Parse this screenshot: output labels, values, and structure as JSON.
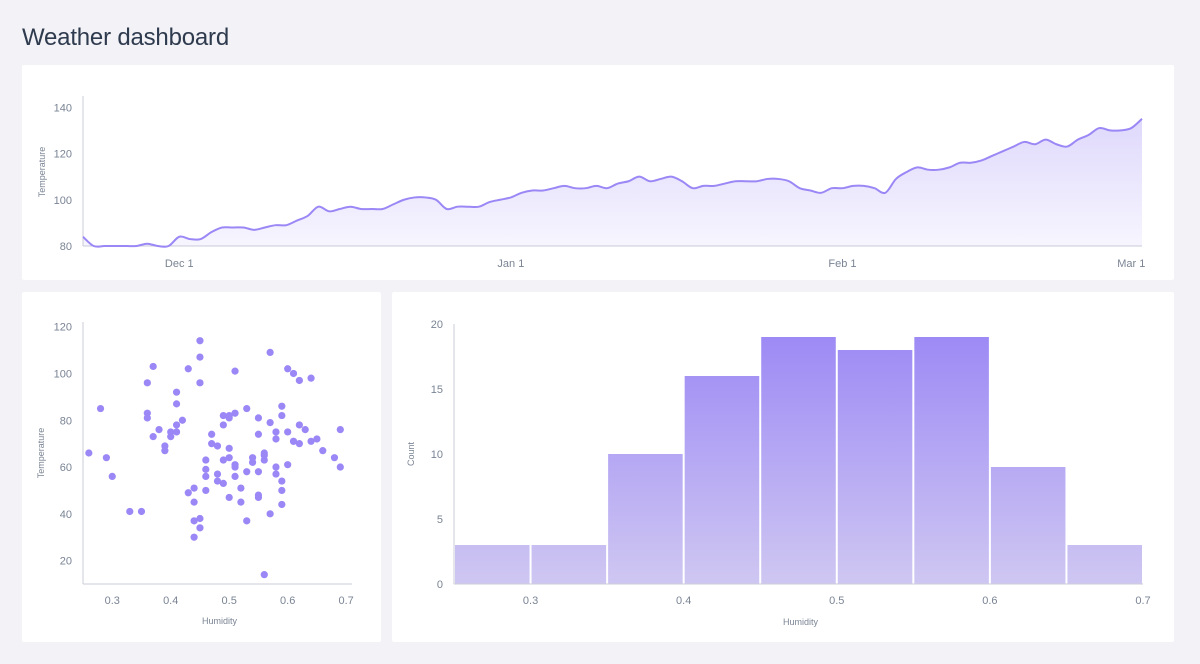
{
  "header": {
    "title": "Weather dashboard"
  },
  "colors": {
    "accent": "#9b87f5",
    "accent_light": "#cfc7f2",
    "card": "#ffffff",
    "background": "#f2f2f7"
  },
  "chart_data": [
    {
      "type": "area",
      "title": "",
      "xlabel": "",
      "ylabel": "Temperature",
      "ylim": [
        80,
        144
      ],
      "x_ticks": [
        "Dec 1",
        "Jan 1",
        "Feb 1",
        "Mar 1"
      ],
      "y_ticks": [
        80,
        100,
        120,
        140
      ],
      "x_start": "Nov 22",
      "day_count": 99,
      "values": [
        84,
        80,
        80,
        80,
        80,
        80,
        81,
        80,
        80,
        84,
        83,
        83,
        86,
        88,
        88,
        88,
        87,
        88,
        89,
        89,
        91,
        93,
        97,
        95,
        96,
        97,
        96,
        96,
        96,
        98,
        100,
        101,
        101,
        100,
        96,
        97,
        97,
        97,
        99,
        100,
        101,
        103,
        104,
        104,
        105,
        106,
        105,
        105,
        106,
        105,
        107,
        108,
        110,
        108,
        109,
        110,
        108,
        105,
        106,
        106,
        107,
        108,
        108,
        108,
        109,
        109,
        108,
        105,
        104,
        103,
        105,
        105,
        106,
        106,
        105,
        103,
        109,
        112,
        114,
        113,
        113,
        114,
        116,
        116,
        117,
        119,
        121,
        123,
        125,
        124,
        126,
        124,
        123,
        126,
        128,
        131,
        130,
        130,
        131,
        135
      ]
    },
    {
      "type": "scatter",
      "xlabel": "Humidity",
      "ylabel": "Temperature",
      "xlim": [
        0.25,
        0.71
      ],
      "ylim": [
        10,
        122
      ],
      "x_ticks": [
        0.3,
        0.4,
        0.5,
        0.6,
        0.7
      ],
      "y_ticks": [
        20,
        40,
        60,
        80,
        100,
        120
      ],
      "points": [
        [
          0.26,
          66
        ],
        [
          0.28,
          85
        ],
        [
          0.29,
          64
        ],
        [
          0.3,
          56
        ],
        [
          0.33,
          41
        ],
        [
          0.35,
          41
        ],
        [
          0.36,
          96
        ],
        [
          0.36,
          83
        ],
        [
          0.36,
          81
        ],
        [
          0.37,
          73
        ],
        [
          0.37,
          103
        ],
        [
          0.38,
          76
        ],
        [
          0.39,
          69
        ],
        [
          0.39,
          67
        ],
        [
          0.4,
          75
        ],
        [
          0.4,
          73
        ],
        [
          0.41,
          75
        ],
        [
          0.41,
          92
        ],
        [
          0.41,
          78
        ],
        [
          0.41,
          87
        ],
        [
          0.42,
          80
        ],
        [
          0.43,
          49
        ],
        [
          0.43,
          102
        ],
        [
          0.44,
          51
        ],
        [
          0.44,
          45
        ],
        [
          0.44,
          37
        ],
        [
          0.44,
          30
        ],
        [
          0.45,
          38
        ],
        [
          0.45,
          96
        ],
        [
          0.45,
          34
        ],
        [
          0.45,
          114
        ],
        [
          0.45,
          107
        ],
        [
          0.46,
          56
        ],
        [
          0.46,
          59
        ],
        [
          0.46,
          63
        ],
        [
          0.46,
          50
        ],
        [
          0.47,
          70
        ],
        [
          0.47,
          74
        ],
        [
          0.48,
          57
        ],
        [
          0.48,
          69
        ],
        [
          0.48,
          54
        ],
        [
          0.49,
          63
        ],
        [
          0.49,
          53
        ],
        [
          0.49,
          82
        ],
        [
          0.49,
          78
        ],
        [
          0.5,
          81
        ],
        [
          0.5,
          64
        ],
        [
          0.5,
          47
        ],
        [
          0.5,
          68
        ],
        [
          0.5,
          82
        ],
        [
          0.51,
          61
        ],
        [
          0.51,
          56
        ],
        [
          0.51,
          83
        ],
        [
          0.51,
          101
        ],
        [
          0.51,
          60
        ],
        [
          0.52,
          51
        ],
        [
          0.52,
          45
        ],
        [
          0.53,
          85
        ],
        [
          0.53,
          37
        ],
        [
          0.53,
          58
        ],
        [
          0.54,
          62
        ],
        [
          0.54,
          64
        ],
        [
          0.55,
          74
        ],
        [
          0.55,
          81
        ],
        [
          0.55,
          58
        ],
        [
          0.55,
          47
        ],
        [
          0.55,
          48
        ],
        [
          0.56,
          63
        ],
        [
          0.56,
          65
        ],
        [
          0.56,
          66
        ],
        [
          0.56,
          14
        ],
        [
          0.57,
          79
        ],
        [
          0.57,
          109
        ],
        [
          0.57,
          40
        ],
        [
          0.58,
          72
        ],
        [
          0.58,
          75
        ],
        [
          0.58,
          57
        ],
        [
          0.58,
          60
        ],
        [
          0.59,
          54
        ],
        [
          0.59,
          50
        ],
        [
          0.59,
          44
        ],
        [
          0.59,
          86
        ],
        [
          0.59,
          82
        ],
        [
          0.6,
          61
        ],
        [
          0.6,
          102
        ],
        [
          0.6,
          75
        ],
        [
          0.61,
          71
        ],
        [
          0.61,
          71
        ],
        [
          0.61,
          100
        ],
        [
          0.62,
          78
        ],
        [
          0.62,
          97
        ],
        [
          0.62,
          70
        ],
        [
          0.63,
          76
        ],
        [
          0.64,
          71
        ],
        [
          0.64,
          98
        ],
        [
          0.65,
          72
        ],
        [
          0.66,
          67
        ],
        [
          0.68,
          64
        ],
        [
          0.69,
          76
        ],
        [
          0.69,
          60
        ]
      ]
    },
    {
      "type": "bar",
      "subtype": "histogram",
      "xlabel": "Humidity",
      "ylabel": "Count",
      "xlim": [
        0.25,
        0.7
      ],
      "ylim": [
        0,
        20
      ],
      "x_ticks": [
        0.3,
        0.4,
        0.5,
        0.6,
        0.7
      ],
      "y_ticks": [
        0,
        5,
        10,
        15,
        20
      ],
      "bins": [
        {
          "start": 0.25,
          "end": 0.3,
          "count": 3
        },
        {
          "start": 0.3,
          "end": 0.35,
          "count": 3
        },
        {
          "start": 0.35,
          "end": 0.4,
          "count": 10
        },
        {
          "start": 0.4,
          "end": 0.45,
          "count": 16
        },
        {
          "start": 0.45,
          "end": 0.5,
          "count": 19
        },
        {
          "start": 0.5,
          "end": 0.55,
          "count": 18
        },
        {
          "start": 0.55,
          "end": 0.6,
          "count": 19
        },
        {
          "start": 0.6,
          "end": 0.65,
          "count": 9
        },
        {
          "start": 0.65,
          "end": 0.7,
          "count": 3
        }
      ]
    }
  ]
}
